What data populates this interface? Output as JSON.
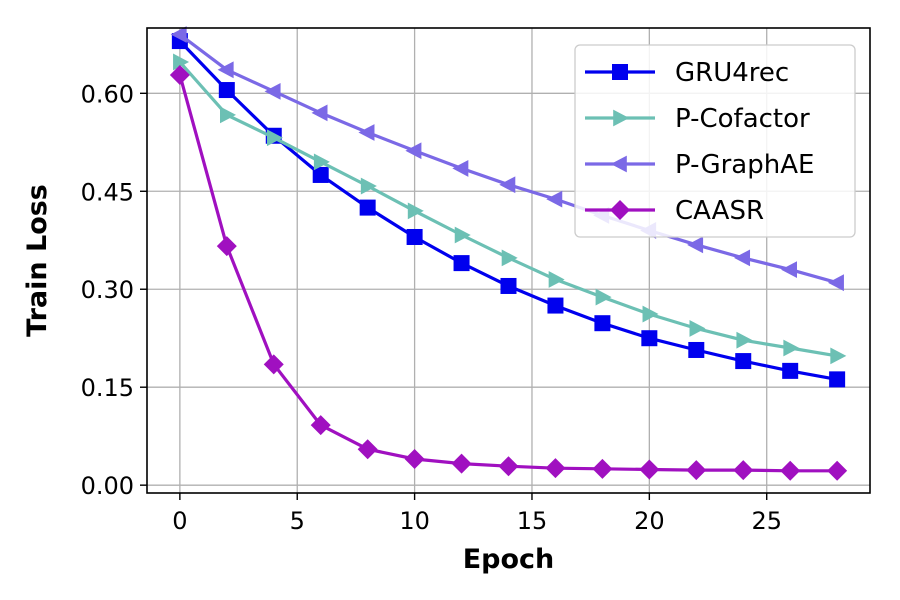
{
  "chart_data": {
    "type": "line",
    "title": "",
    "xlabel": "Epoch",
    "ylabel": "Train Loss",
    "xlim": [
      -1.4,
      29.4
    ],
    "ylim": [
      -0.012,
      0.7
    ],
    "xticks": [
      0,
      5,
      10,
      15,
      20,
      25
    ],
    "yticks": [
      0.0,
      0.15,
      0.3,
      0.45,
      0.6
    ],
    "ytick_labels": [
      "0.00",
      "0.15",
      "0.30",
      "0.45",
      "0.60"
    ],
    "grid": true,
    "legend_position": "top-right",
    "x": [
      0,
      2,
      4,
      6,
      8,
      10,
      12,
      14,
      16,
      18,
      20,
      22,
      24,
      26,
      28
    ],
    "series": [
      {
        "name": "GRU4rec",
        "color": "#0000ee",
        "marker": "square",
        "values": [
          0.68,
          0.605,
          0.535,
          0.475,
          0.425,
          0.38,
          0.34,
          0.305,
          0.275,
          0.248,
          0.225,
          0.207,
          0.19,
          0.175,
          0.162
        ]
      },
      {
        "name": "P-Cofactor",
        "color": "#6cc0b4",
        "marker": "triangle-right",
        "values": [
          0.648,
          0.567,
          0.532,
          0.495,
          0.458,
          0.42,
          0.383,
          0.348,
          0.315,
          0.288,
          0.262,
          0.24,
          0.222,
          0.21,
          0.198
        ]
      },
      {
        "name": "P-GraphAE",
        "color": "#7b69e6",
        "marker": "triangle-left",
        "values": [
          0.69,
          0.636,
          0.603,
          0.57,
          0.54,
          0.512,
          0.485,
          0.46,
          0.438,
          0.413,
          0.39,
          0.368,
          0.348,
          0.33,
          0.31
        ]
      },
      {
        "name": "CAASR",
        "color": "#a010c0",
        "marker": "diamond",
        "values": [
          0.628,
          0.366,
          0.185,
          0.092,
          0.055,
          0.04,
          0.033,
          0.029,
          0.026,
          0.025,
          0.024,
          0.023,
          0.023,
          0.022,
          0.022
        ]
      }
    ]
  }
}
